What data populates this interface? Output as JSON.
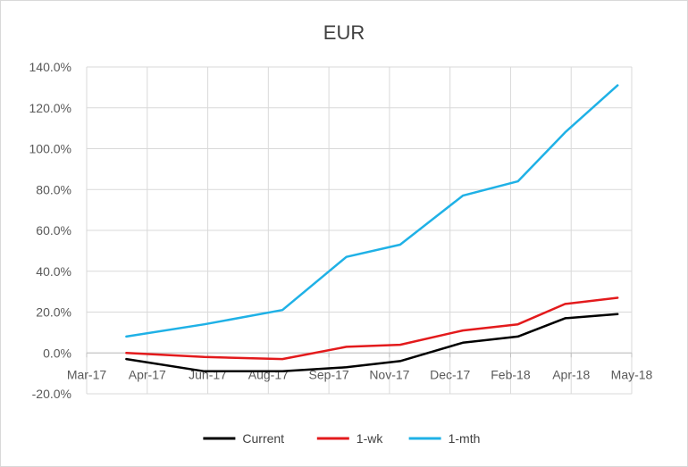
{
  "chart_data": {
    "type": "line",
    "title": "EUR",
    "xlabel": "",
    "ylabel": "",
    "x_ticks": [
      "Mar-17",
      "Apr-17",
      "Jun-17",
      "Aug-17",
      "Sep-17",
      "Nov-17",
      "Dec-17",
      "Feb-18",
      "Apr-18",
      "May-18"
    ],
    "y_ticks": [
      "-20.0%",
      "0.0%",
      "20.0%",
      "40.0%",
      "60.0%",
      "80.0%",
      "100.0%",
      "120.0%",
      "140.0%"
    ],
    "ylim": [
      -20,
      140
    ],
    "xlim": [
      "2017-03-01",
      "2018-05-01"
    ],
    "grid": true,
    "legend_position": "bottom",
    "x": [
      "2017-04-01",
      "2017-06-01",
      "2017-08-01",
      "2017-09-20",
      "2017-11-01",
      "2017-12-20",
      "2018-02-01",
      "2018-03-10",
      "2018-04-20"
    ],
    "series": [
      {
        "name": "Current",
        "color": "#000000",
        "values": [
          -3,
          -9,
          -9,
          -7,
          -4,
          5,
          8,
          17,
          19
        ]
      },
      {
        "name": "1-wk",
        "color": "#e31a1c",
        "values": [
          0,
          -2,
          -3,
          3,
          4,
          11,
          14,
          24,
          27
        ]
      },
      {
        "name": "1-mth",
        "color": "#1fb1e6",
        "values": [
          8,
          14,
          21,
          47,
          53,
          77,
          84,
          108,
          131
        ]
      }
    ]
  }
}
